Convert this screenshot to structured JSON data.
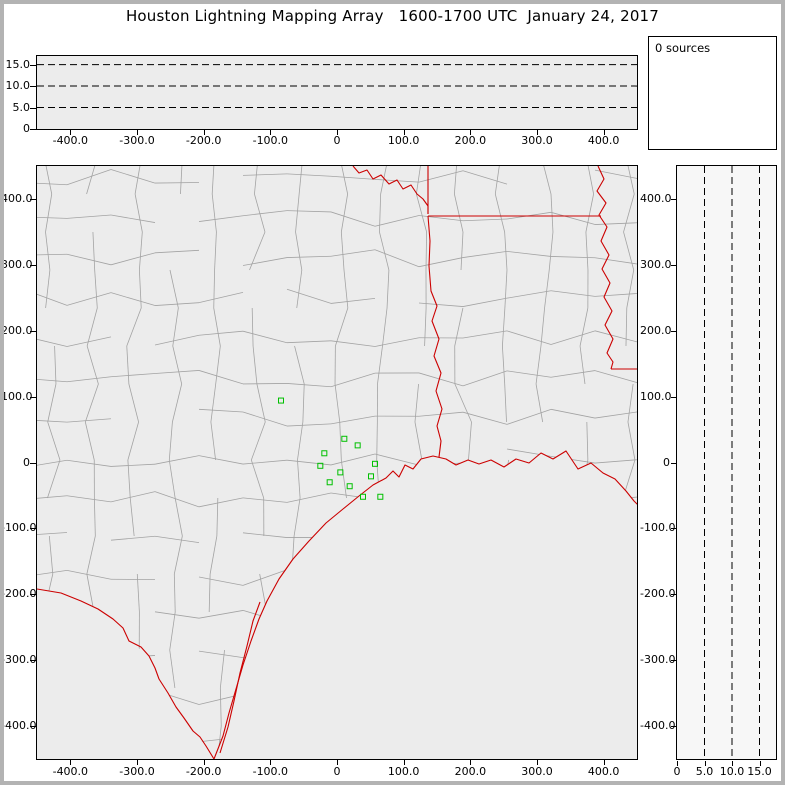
{
  "window": {
    "title": "Houston Lightning Mapping Array   1600-1700 UTC  January 24, 2017"
  },
  "status": {
    "sources_label": "0 sources"
  },
  "colors": {
    "state_border_red": "#cc0000",
    "county_line_gray": "#a3a3a3",
    "station_marker_green": "#00c000",
    "dashed_gridline_black": "#000000",
    "plot_bg_gray": "#ececec",
    "frame_gray": "#b3b3b3"
  },
  "chart_data": [
    {
      "type": "scatter",
      "name": "altitude-vs-eastwest",
      "title": "",
      "xlabel": "",
      "ylabel": "",
      "xlim": [
        -450,
        450
      ],
      "ylim": [
        0,
        17
      ],
      "x_ticks_km": [
        -400,
        -300,
        -200,
        -100,
        0,
        100,
        200,
        300,
        400
      ],
      "x_tick_labels": [
        "-400.0",
        "-300.0",
        "-200.0",
        "-100.0",
        "0",
        "100.0",
        "200.0",
        "300.0",
        "400.0"
      ],
      "y_ticks_km": [
        15,
        10,
        5,
        0
      ],
      "y_tick_labels": [
        "15.0",
        "10.0",
        "5.0",
        "0"
      ],
      "dashed_gridlines_y_km": [
        5,
        10,
        15
      ],
      "grid": "dashed-horizontal",
      "points": []
    },
    {
      "type": "scatter",
      "name": "plan-view-map",
      "title": "",
      "xlabel": "",
      "ylabel": "",
      "xlim": [
        -450,
        450
      ],
      "ylim": [
        -450,
        450
      ],
      "x_ticks_km": [
        -400,
        -300,
        -200,
        -100,
        0,
        100,
        200,
        300,
        400
      ],
      "x_tick_labels": [
        "-400.0",
        "-300.0",
        "-200.0",
        "-100.0",
        "0",
        "100.0",
        "200.0",
        "300.0",
        "400.0"
      ],
      "y_ticks_km": [
        400,
        300,
        200,
        100,
        0,
        -100,
        -200,
        -300,
        -400
      ],
      "y_tick_labels": [
        "400.0",
        "300.0",
        "200.0",
        "100.0",
        "0",
        "-100.0",
        "-200.0",
        "-300.0",
        "-400.0"
      ],
      "stations_km": [
        [
          -84,
          94
        ],
        [
          11,
          36
        ],
        [
          31,
          26
        ],
        [
          -19,
          14
        ],
        [
          -25,
          -5
        ],
        [
          5,
          -15
        ],
        [
          57,
          -2
        ],
        [
          51,
          -21
        ],
        [
          -11,
          -30
        ],
        [
          19,
          -36
        ],
        [
          39,
          -52
        ],
        [
          65,
          -52
        ]
      ],
      "points": []
    },
    {
      "type": "scatter",
      "name": "altitude-vs-northsouth",
      "title": "",
      "xlabel": "",
      "ylabel": "",
      "xlim": [
        0,
        18
      ],
      "ylim": [
        -450,
        450
      ],
      "x_ticks_km": [
        0,
        5,
        10,
        15
      ],
      "x_tick_labels": [
        "0",
        "5.0",
        "10.0",
        "15.0"
      ],
      "y_ticks_km": [
        400,
        300,
        200,
        100,
        0,
        -100,
        -200,
        -300,
        -400
      ],
      "y_tick_labels": [
        "400.0",
        "300.0",
        "200.0",
        "100.0",
        "0",
        "-100.0",
        "-200.0",
        "-300.0",
        "-400.0"
      ],
      "dashed_gridlines_x_km": [
        5,
        10,
        15
      ],
      "grid": "dashed-vertical",
      "points": []
    }
  ]
}
